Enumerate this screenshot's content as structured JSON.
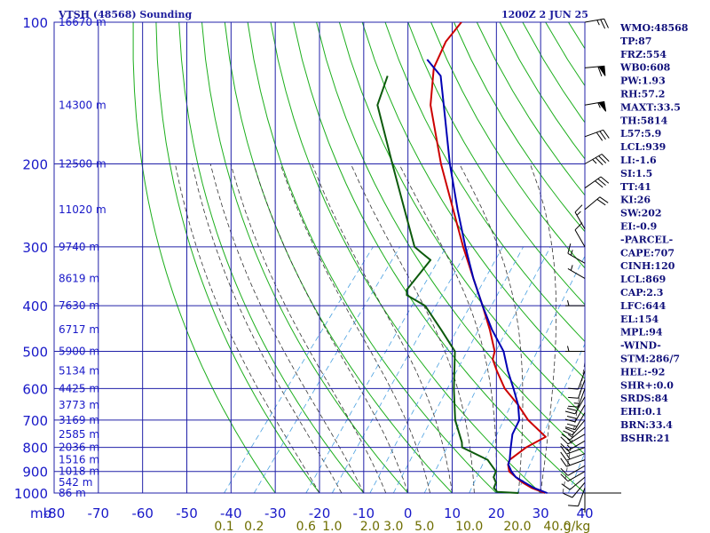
{
  "header": {
    "station": "VTSH (48568) Sounding",
    "time": "1200Z  2 JUN 25"
  },
  "colors": {
    "grid": "#2020a8",
    "dry_adiabat": "#1cae1c",
    "moist_adiabat": "#333333",
    "mixing_ratio": "#4aa0e0",
    "temperature": "#cc0000",
    "dewpoint": "#0c5a0c",
    "parcel": "#0000b4",
    "wind": "#000000"
  },
  "chart_data": {
    "type": "skew-t",
    "axes": {
      "pressure_unit": "mb",
      "pressure_range": [
        100,
        1000
      ],
      "pressure_ticks": [
        100,
        200,
        300,
        400,
        500,
        600,
        700,
        800,
        900,
        1000
      ],
      "temperature_range": [
        -80,
        40
      ],
      "temperature_ticks": [
        -80,
        -70,
        -60,
        -50,
        -40,
        -30,
        -20,
        -10,
        0,
        10,
        20,
        30,
        40
      ],
      "mixing_ratio_unit": "g/kg",
      "mixing_ratio_labels": [
        "0.1",
        "0.2",
        "0.6",
        "1.0",
        "2.0",
        "3.0",
        "5.0",
        "10.0",
        "20.0",
        "40.0"
      ]
    },
    "height_labels": [
      {
        "p": 100,
        "label": "16670 m"
      },
      {
        "p": 150,
        "label": "14300 m"
      },
      {
        "p": 200,
        "label": "12500 m"
      },
      {
        "p": 250,
        "label": "11020 m"
      },
      {
        "p": 300,
        "label": "9740 m"
      },
      {
        "p": 350,
        "label": "8619 m"
      },
      {
        "p": 400,
        "label": "7630 m"
      },
      {
        "p": 450,
        "label": "6717 m"
      },
      {
        "p": 500,
        "label": "5900 m"
      },
      {
        "p": 550,
        "label": "5134 m"
      },
      {
        "p": 600,
        "label": "4425 m"
      },
      {
        "p": 650,
        "label": "3773 m"
      },
      {
        "p": 700,
        "label": "3169 m"
      },
      {
        "p": 750,
        "label": "2585 m"
      },
      {
        "p": 800,
        "label": "2036 m"
      },
      {
        "p": 850,
        "label": "1516 m"
      },
      {
        "p": 900,
        "label": "1018 m"
      },
      {
        "p": 950,
        "label": "542 m"
      },
      {
        "p": 1000,
        "label": "86 m"
      }
    ],
    "series": [
      {
        "name": "Temperature",
        "points": [
          [
            1000,
            31
          ],
          [
            975,
            27
          ],
          [
            950,
            24
          ],
          [
            925,
            21.5
          ],
          [
            900,
            19
          ],
          [
            870,
            17.5
          ],
          [
            850,
            17
          ],
          [
            800,
            18.5
          ],
          [
            760,
            21
          ],
          [
            700,
            14
          ],
          [
            650,
            9
          ],
          [
            600,
            3
          ],
          [
            550,
            -2
          ],
          [
            520,
            -5
          ],
          [
            500,
            -6
          ],
          [
            450,
            -11
          ],
          [
            400,
            -17
          ],
          [
            350,
            -24
          ],
          [
            300,
            -32
          ],
          [
            250,
            -41
          ],
          [
            200,
            -52
          ],
          [
            150,
            -65
          ],
          [
            125,
            -71
          ],
          [
            110,
            -73
          ],
          [
            100,
            -73
          ]
        ]
      },
      {
        "name": "Dewpoint",
        "points": [
          [
            1000,
            25
          ],
          [
            995,
            20
          ],
          [
            975,
            18.5
          ],
          [
            950,
            18
          ],
          [
            925,
            16.5
          ],
          [
            900,
            16
          ],
          [
            850,
            12
          ],
          [
            800,
            4
          ],
          [
            780,
            3
          ],
          [
            700,
            -2.5
          ],
          [
            600,
            -8.5
          ],
          [
            500,
            -15
          ],
          [
            450,
            -22
          ],
          [
            400,
            -30
          ],
          [
            380,
            -36
          ],
          [
            370,
            -37
          ],
          [
            340,
            -37
          ],
          [
            320,
            -37
          ],
          [
            310,
            -40
          ],
          [
            300,
            -43
          ],
          [
            250,
            -52
          ],
          [
            200,
            -63
          ],
          [
            150,
            -77
          ],
          [
            130,
            -80
          ]
        ]
      },
      {
        "name": "Parcel",
        "points": [
          [
            1000,
            31.5
          ],
          [
            975,
            27.5
          ],
          [
            950,
            24.5
          ],
          [
            925,
            21.5
          ],
          [
            900,
            19.5
          ],
          [
            869,
            17.5
          ],
          [
            850,
            17
          ],
          [
            800,
            15
          ],
          [
            750,
            13
          ],
          [
            700,
            12
          ],
          [
            650,
            9
          ],
          [
            600,
            5
          ],
          [
            550,
            0.5
          ],
          [
            500,
            -4
          ],
          [
            450,
            -10.5
          ],
          [
            400,
            -17
          ],
          [
            350,
            -24
          ],
          [
            300,
            -31.5
          ],
          [
            250,
            -40
          ],
          [
            200,
            -50
          ],
          [
            150,
            -62
          ],
          [
            130,
            -68
          ],
          [
            120,
            -74
          ]
        ]
      }
    ],
    "wind": [
      {
        "p": 100,
        "dir": 80,
        "spd": 25
      },
      {
        "p": 125,
        "dir": 85,
        "spd": 60
      },
      {
        "p": 150,
        "dir": 80,
        "spd": 55
      },
      {
        "p": 175,
        "dir": 70,
        "spd": 30
      },
      {
        "p": 200,
        "dir": 60,
        "spd": 35
      },
      {
        "p": 225,
        "dir": 55,
        "spd": 30
      },
      {
        "p": 250,
        "dir": 50,
        "spd": 20
      },
      {
        "p": 275,
        "dir": 330,
        "spd": 15
      },
      {
        "p": 300,
        "dir": 330,
        "spd": 10
      },
      {
        "p": 325,
        "dir": 300,
        "spd": 15
      },
      {
        "p": 350,
        "dir": 300,
        "spd": 5
      },
      {
        "p": 400,
        "dir": 270,
        "spd": 5
      },
      {
        "p": 500,
        "dir": 270,
        "spd": 5
      },
      {
        "p": 550,
        "dir": 200,
        "spd": 10
      },
      {
        "p": 575,
        "dir": 200,
        "spd": 10
      },
      {
        "p": 600,
        "dir": 200,
        "spd": 15
      },
      {
        "p": 625,
        "dir": 210,
        "spd": 20
      },
      {
        "p": 650,
        "dir": 210,
        "spd": 20
      },
      {
        "p": 675,
        "dir": 210,
        "spd": 20
      },
      {
        "p": 700,
        "dir": 220,
        "spd": 20
      },
      {
        "p": 725,
        "dir": 230,
        "spd": 15
      },
      {
        "p": 750,
        "dir": 240,
        "spd": 15
      },
      {
        "p": 775,
        "dir": 240,
        "spd": 15
      },
      {
        "p": 800,
        "dir": 250,
        "spd": 15
      },
      {
        "p": 825,
        "dir": 250,
        "spd": 15
      },
      {
        "p": 850,
        "dir": 250,
        "spd": 15
      },
      {
        "p": 875,
        "dir": 240,
        "spd": 10
      },
      {
        "p": 900,
        "dir": 240,
        "spd": 10
      },
      {
        "p": 925,
        "dir": 230,
        "spd": 10
      },
      {
        "p": 950,
        "dir": 220,
        "spd": 10
      },
      {
        "p": 975,
        "dir": 200,
        "spd": 10
      },
      {
        "p": 1000,
        "dir": 180,
        "spd": 5
      }
    ]
  },
  "indices": [
    "WMO:48568",
    "TP:87",
    "FRZ:554",
    "WB0:608",
    "PW:1.93",
    "RH:57.2",
    "MAXT:33.5",
    "TH:5814",
    "L57:5.9",
    "LCL:939",
    "LI:-1.6",
    "SI:1.5",
    "TT:41",
    "KI:26",
    "SW:202",
    "EI:-0.9",
    "-PARCEL-",
    "CAPE:707",
    "CINH:120",
    "LCL:869",
    "CAP:2.3",
    "LFC:644",
    "EL:154",
    "MPL:94",
    "-WIND-",
    "STM:286/7",
    "HEL:-92",
    "SHR+:0.0",
    "SRDS:84",
    "EHI:0.1",
    "BRN:33.4",
    "BSHR:21"
  ]
}
